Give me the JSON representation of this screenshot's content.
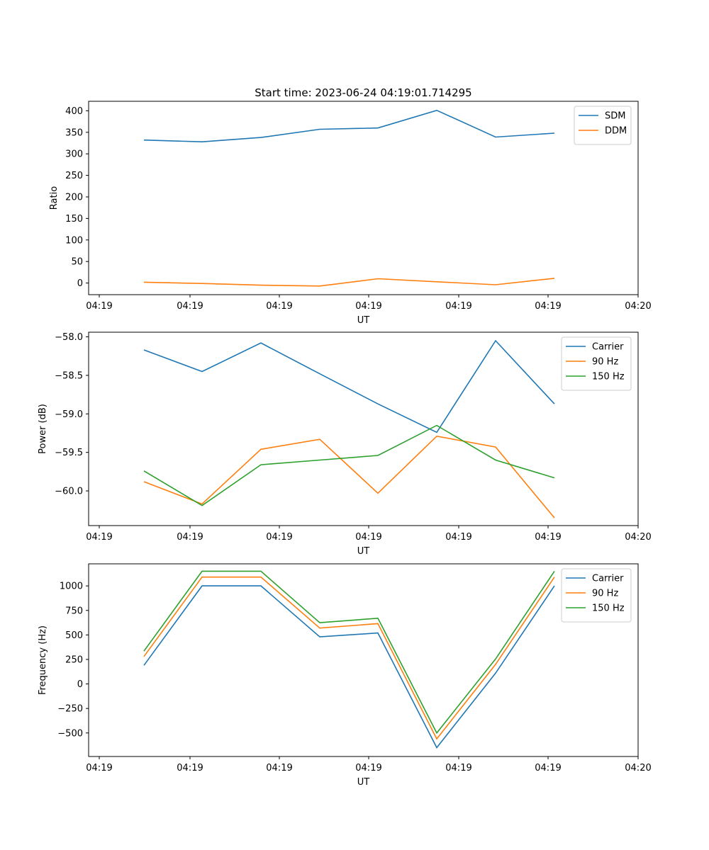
{
  "chart_data": [
    {
      "type": "line",
      "title": "Start time: 2023-06-24 04:19:01.714295",
      "xlabel": "UT",
      "ylabel": "Ratio",
      "xticks": [
        "04:19",
        "04:19",
        "04:19",
        "04:19",
        "04:19",
        "04:19",
        "04:20"
      ],
      "yticks": [
        0,
        50,
        100,
        150,
        200,
        250,
        300,
        350,
        400
      ],
      "ylim": [
        -27,
        422
      ],
      "grid": false,
      "legend": "top-right",
      "series": [
        {
          "name": "SDM",
          "color": "#1f77b4",
          "values": [
            332,
            328,
            338,
            357,
            360,
            401,
            339,
            348
          ]
        },
        {
          "name": "DDM",
          "color": "#ff7f0e",
          "values": [
            2,
            -1,
            -5,
            -7,
            10,
            3,
            -4,
            11
          ]
        }
      ]
    },
    {
      "type": "line",
      "title": "",
      "xlabel": "UT",
      "ylabel": "Power (dB)",
      "xticks": [
        "04:19",
        "04:19",
        "04:19",
        "04:19",
        "04:19",
        "04:19",
        "04:20"
      ],
      "yticks": [
        "−58.0",
        "−58.5",
        "−59.0",
        "−59.5",
        "−60.0"
      ],
      "ylim": [
        -60.45,
        -57.94
      ],
      "grid": false,
      "legend": "top-right",
      "series": [
        {
          "name": "Carrier",
          "color": "#1f77b4",
          "values": [
            -58.17,
            -58.45,
            -58.08,
            -58.48,
            -58.87,
            -59.24,
            -58.05,
            -58.87
          ]
        },
        {
          "name": "90 Hz",
          "color": "#ff7f0e",
          "values": [
            -59.88,
            -60.17,
            -59.46,
            -59.33,
            -60.03,
            -59.29,
            -59.43,
            -60.35
          ]
        },
        {
          "name": "150 Hz",
          "color": "#2ca02c",
          "values": [
            -59.74,
            -60.19,
            -59.66,
            -59.6,
            -59.54,
            -59.15,
            -59.6,
            -59.83
          ]
        }
      ]
    },
    {
      "type": "line",
      "title": "",
      "xlabel": "UT",
      "ylabel": "Frequency (Hz)",
      "xticks": [
        "04:19",
        "04:19",
        "04:19",
        "04:19",
        "04:19",
        "04:19",
        "04:20"
      ],
      "yticks": [
        "−500",
        "−250",
        "0",
        "250",
        "500",
        "750",
        "1000"
      ],
      "ylim": [
        -740,
        1225
      ],
      "grid": false,
      "legend": "top-right",
      "series": [
        {
          "name": "Carrier",
          "color": "#1f77b4",
          "values": [
            190,
            1000,
            1000,
            480,
            520,
            -650,
            110,
            1000
          ]
        },
        {
          "name": "90 Hz",
          "color": "#ff7f0e",
          "values": [
            280,
            1090,
            1090,
            570,
            615,
            -560,
            200,
            1090
          ]
        },
        {
          "name": "150 Hz",
          "color": "#2ca02c",
          "values": [
            335,
            1150,
            1150,
            625,
            670,
            -500,
            255,
            1150
          ]
        }
      ]
    }
  ]
}
